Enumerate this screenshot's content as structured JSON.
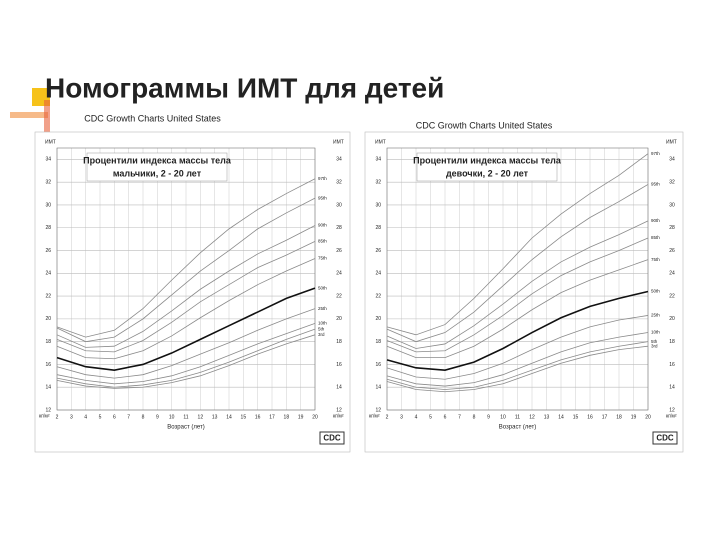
{
  "title": "Номограммы ИМТ для детей",
  "chart_data": [
    {
      "type": "line",
      "header": "CDC Growth Charts United States",
      "title": "Процентили индекса массы тела",
      "subtitle": "мальчики, 2 - 20 лет",
      "y_label": "ИМТ",
      "y_unit": "кг/м²",
      "x_label": "Возраст (лет)",
      "logo": "CDC",
      "x": [
        2,
        4,
        6,
        8,
        10,
        12,
        14,
        16,
        18,
        20
      ],
      "xlim": [
        2,
        20
      ],
      "xticks": [
        2,
        3,
        4,
        5,
        6,
        7,
        8,
        9,
        10,
        11,
        12,
        13,
        14,
        15,
        16,
        17,
        18,
        19,
        20
      ],
      "ylim": [
        12,
        35
      ],
      "yticks": [
        12,
        14,
        16,
        18,
        20,
        22,
        24,
        26,
        28,
        30,
        32,
        34
      ],
      "grid": true,
      "series": [
        {
          "name": "97th",
          "color": "#8a8a8a",
          "values": [
            19.3,
            18.4,
            19.0,
            20.9,
            23.4,
            25.8,
            27.9,
            29.6,
            31.0,
            32.3
          ]
        },
        {
          "name": "95th",
          "color": "#8a8a8a",
          "values": [
            19.2,
            18.0,
            18.4,
            20.0,
            22.1,
            24.2,
            26.0,
            27.9,
            29.3,
            30.6
          ]
        },
        {
          "name": "90th",
          "color": "#8a8a8a",
          "values": [
            18.6,
            17.5,
            17.6,
            18.9,
            20.7,
            22.6,
            24.2,
            25.7,
            26.9,
            28.2
          ]
        },
        {
          "name": "85th",
          "color": "#8a8a8a",
          "values": [
            18.2,
            17.2,
            17.1,
            18.1,
            19.7,
            21.5,
            23.0,
            24.5,
            25.6,
            26.8
          ]
        },
        {
          "name": "75th",
          "color": "#8a8a8a",
          "values": [
            17.6,
            16.6,
            16.5,
            17.2,
            18.5,
            20.1,
            21.6,
            23.0,
            24.2,
            25.3
          ]
        },
        {
          "name": "50th",
          "color": "#111111",
          "values": [
            16.6,
            15.8,
            15.5,
            16.0,
            17.0,
            18.2,
            19.4,
            20.6,
            21.8,
            22.7
          ]
        },
        {
          "name": "25th",
          "color": "#8a8a8a",
          "values": [
            15.8,
            15.1,
            14.8,
            15.1,
            15.9,
            16.9,
            17.9,
            19.0,
            20.0,
            20.9
          ]
        },
        {
          "name": "10th",
          "color": "#8a8a8a",
          "values": [
            15.1,
            14.6,
            14.3,
            14.5,
            15.0,
            15.8,
            16.8,
            17.8,
            18.7,
            19.6
          ]
        },
        {
          "name": "5th",
          "color": "#8a8a8a",
          "values": [
            14.8,
            14.3,
            14.0,
            14.2,
            14.6,
            15.3,
            16.2,
            17.2,
            18.2,
            19.1
          ]
        },
        {
          "name": "3rd",
          "color": "#8a8a8a",
          "values": [
            14.6,
            14.1,
            13.9,
            14.0,
            14.4,
            15.0,
            15.9,
            16.9,
            17.8,
            18.6
          ]
        }
      ]
    },
    {
      "type": "line",
      "header": "CDC Growth Charts United States",
      "title": "Процентили индекса массы тела",
      "subtitle": "девочки, 2 - 20 лет",
      "y_label": "ИМТ",
      "y_unit": "кг/м²",
      "x_label": "Возраст (лет)",
      "logo": "CDC",
      "x": [
        2,
        4,
        6,
        8,
        10,
        12,
        14,
        16,
        18,
        20
      ],
      "xlim": [
        2,
        20
      ],
      "xticks": [
        2,
        3,
        4,
        5,
        6,
        7,
        8,
        9,
        10,
        11,
        12,
        13,
        14,
        15,
        16,
        17,
        18,
        19,
        20
      ],
      "ylim": [
        12,
        35
      ],
      "yticks": [
        12,
        14,
        16,
        18,
        20,
        22,
        24,
        26,
        28,
        30,
        32,
        34
      ],
      "grid": true,
      "series": [
        {
          "name": "97th",
          "color": "#8a8a8a",
          "values": [
            19.3,
            18.6,
            19.5,
            21.8,
            24.4,
            27.1,
            29.2,
            31.0,
            32.6,
            34.5
          ]
        },
        {
          "name": "95th",
          "color": "#8a8a8a",
          "values": [
            19.1,
            18.0,
            18.8,
            20.6,
            22.9,
            25.2,
            27.2,
            28.9,
            30.3,
            31.8
          ]
        },
        {
          "name": "90th",
          "color": "#8a8a8a",
          "values": [
            18.5,
            17.4,
            17.8,
            19.4,
            21.3,
            23.3,
            25.0,
            26.3,
            27.4,
            28.6
          ]
        },
        {
          "name": "85th",
          "color": "#8a8a8a",
          "values": [
            18.1,
            17.1,
            17.2,
            18.6,
            20.3,
            22.2,
            23.8,
            25.0,
            26.0,
            27.1
          ]
        },
        {
          "name": "75th",
          "color": "#8a8a8a",
          "values": [
            17.6,
            16.6,
            16.6,
            17.6,
            19.1,
            20.8,
            22.3,
            23.4,
            24.3,
            25.2
          ]
        },
        {
          "name": "50th",
          "color": "#111111",
          "values": [
            16.4,
            15.7,
            15.5,
            16.2,
            17.4,
            18.8,
            20.1,
            21.1,
            21.8,
            22.4
          ]
        },
        {
          "name": "25th",
          "color": "#8a8a8a",
          "values": [
            15.7,
            14.9,
            14.7,
            15.2,
            16.1,
            17.3,
            18.4,
            19.3,
            19.9,
            20.3
          ]
        },
        {
          "name": "10th",
          "color": "#8a8a8a",
          "values": [
            15.0,
            14.3,
            14.1,
            14.4,
            15.1,
            16.1,
            17.1,
            17.9,
            18.4,
            18.8
          ]
        },
        {
          "name": "5th",
          "color": "#8a8a8a",
          "values": [
            14.7,
            14.0,
            13.8,
            14.0,
            14.6,
            15.5,
            16.4,
            17.1,
            17.6,
            18.0
          ]
        },
        {
          "name": "3rd",
          "color": "#8a8a8a",
          "values": [
            14.5,
            13.8,
            13.6,
            13.8,
            14.3,
            15.2,
            16.1,
            16.8,
            17.3,
            17.6
          ]
        }
      ]
    }
  ]
}
